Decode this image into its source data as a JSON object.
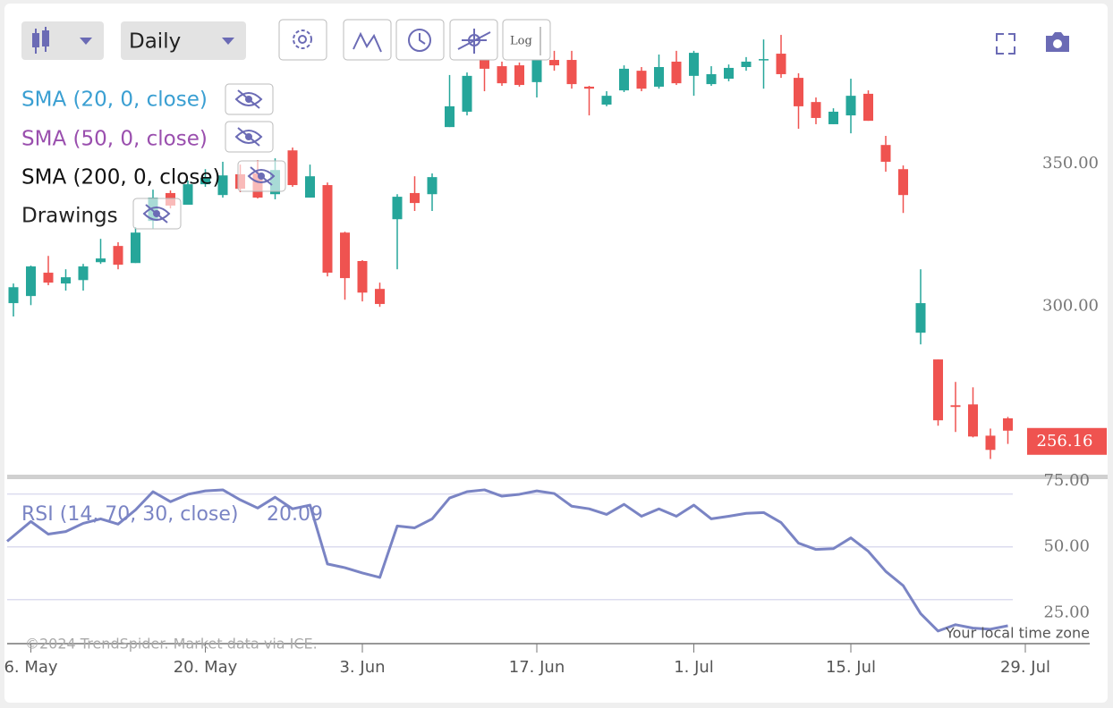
{
  "toolbar": {
    "interval": "Daily",
    "log": "Log"
  },
  "legend": [
    {
      "label": "SMA (20, 0, close)",
      "color": "#3a9fd2"
    },
    {
      "label": "SMA (50, 0, close)",
      "color": "#9a4fae"
    },
    {
      "label": "SMA (200, 0, close)",
      "color": "#111111"
    },
    {
      "label": "Drawings",
      "color": "#222222"
    }
  ],
  "chart_data": [
    {
      "type": "candlestick",
      "categories": [
        null,
        "6. May",
        null,
        null,
        null,
        null,
        null,
        null,
        null,
        null,
        null,
        "20. May",
        null,
        null,
        null,
        null,
        null,
        null,
        null,
        null,
        "3. Jun",
        null,
        null,
        null,
        null,
        null,
        null,
        null,
        null,
        null,
        "17. Jun",
        null,
        null,
        null,
        null,
        null,
        null,
        null,
        null,
        "1. Jul",
        null,
        null,
        null,
        null,
        null,
        null,
        null,
        null,
        "15. Jul",
        null,
        null,
        null,
        null,
        null,
        null,
        null,
        null,
        null,
        "29. Jul"
      ],
      "open": [
        301.0,
        303.5,
        311.7,
        307.9,
        309.1,
        315.4,
        321.1,
        315.1,
        329.9,
        339.7,
        335.6,
        342.8,
        339.0,
        346.3,
        346.6,
        339.3,
        354.7,
        338.1,
        342.5,
        325.8,
        315.8,
        306.0,
        330.5,
        339.7,
        339.3,
        362.9,
        368.3,
        389.0,
        384.3,
        384.6,
        378.7,
        386.5,
        386.5,
        377.1,
        370.8,
        375.8,
        382.7,
        377.1,
        385.9,
        380.9,
        378.0,
        379.9,
        384.0,
        386.5,
        388.7,
        380.2,
        371.7,
        363.9,
        367.0,
        374.6,
        356.6,
        348.1,
        290.6,
        281.2,
        265.1,
        265.4,
        254.4,
        260.5,
        null
      ],
      "high": [
        307.9,
        314.2,
        317.6,
        312.9,
        314.8,
        323.6,
        322.4,
        327.7,
        340.9,
        340.6,
        344.1,
        348.1,
        350.7,
        349.7,
        351.3,
        351.9,
        355.7,
        349.7,
        343.4,
        326.1,
        316.1,
        308.2,
        339.3,
        345.6,
        346.6,
        381.2,
        382.1,
        390.6,
        385.9,
        385.6,
        390.6,
        389.7,
        389.7,
        377.4,
        375.5,
        384.6,
        384.0,
        388.4,
        389.7,
        389.7,
        384.3,
        384.9,
        387.5,
        393.7,
        395.3,
        381.8,
        373.3,
        369.5,
        379.9,
        375.8,
        359.8,
        349.4,
        312.9,
        281.2,
        273.3,
        271.4,
        256.9,
        261.0,
        null
      ],
      "low": [
        296.3,
        300.3,
        307.3,
        305.4,
        305.4,
        314.8,
        312.9,
        315.1,
        327.1,
        334.3,
        335.6,
        341.9,
        338.1,
        340.0,
        337.8,
        337.5,
        341.9,
        338.1,
        310.4,
        302.2,
        301.6,
        299.7,
        312.9,
        333.4,
        333.4,
        362.9,
        367.0,
        375.5,
        377.4,
        377.1,
        373.3,
        382.7,
        376.4,
        367.0,
        370.2,
        375.2,
        375.5,
        376.4,
        377.7,
        373.9,
        377.4,
        379.0,
        382.7,
        376.4,
        380.2,
        362.3,
        363.9,
        363.9,
        360.7,
        365.1,
        347.2,
        332.7,
        286.5,
        257.9,
        255.7,
        253.8,
        246.2,
        251.5,
        null
      ],
      "close": [
        306.6,
        313.9,
        308.2,
        310.1,
        313.9,
        316.7,
        314.5,
        325.8,
        338.1,
        335.3,
        342.8,
        345.0,
        345.9,
        341.2,
        338.1,
        347.8,
        342.5,
        345.6,
        311.7,
        309.8,
        304.7,
        300.7,
        338.4,
        336.2,
        345.3,
        370.2,
        380.9,
        383.4,
        378.3,
        377.7,
        387.8,
        384.6,
        378.0,
        376.4,
        373.9,
        383.4,
        376.4,
        384.0,
        378.3,
        389.0,
        381.5,
        383.7,
        385.9,
        386.8,
        381.5,
        370.2,
        366.1,
        368.3,
        373.9,
        365.1,
        350.7,
        339.0,
        301.0,
        259.8,
        264.5,
        254.1,
        249.4,
        256.16,
        null
      ],
      "up_color": "#26a69a",
      "down_color": "#ef5350",
      "ylim": [
        241,
        406
      ],
      "yticks": [
        {
          "value": 300,
          "label": "300.00"
        },
        {
          "value": 350,
          "label": "350.00"
        }
      ]
    },
    {
      "type": "line",
      "title": "RSI (14, 70, 30, close)",
      "color": "#7a84c4",
      "values": [
        52.1,
        59.6,
        54.8,
        55.8,
        58.9,
        60.6,
        58.6,
        64.0,
        70.9,
        67.1,
        69.9,
        71.2,
        71.6,
        67.8,
        64.7,
        68.8,
        64.4,
        65.8,
        43.5,
        42.1,
        40.1,
        38.4,
        57.9,
        57.2,
        60.6,
        68.5,
        70.9,
        71.6,
        69.2,
        69.9,
        71.2,
        70.2,
        65.4,
        64.4,
        62.3,
        66.1,
        61.6,
        64.4,
        61.6,
        65.8,
        60.6,
        61.6,
        62.7,
        63.0,
        59.2,
        51.4,
        49.0,
        49.3,
        53.4,
        48.3,
        40.7,
        35.3,
        24.7,
        18.1,
        20.5,
        19.2,
        18.8,
        20.09,
        null
      ],
      "ylim": [
        14,
        77
      ],
      "yticks": [
        {
          "value": 25,
          "label": "25.00"
        },
        {
          "value": 50,
          "label": "50.00"
        },
        {
          "value": 75,
          "label": "75.00"
        }
      ],
      "levels": [
        70,
        50,
        30
      ]
    }
  ],
  "footer": {
    "copyright": "©2024 TrendSpider. Market data via ICE.",
    "timezone": "Your local time zone"
  }
}
